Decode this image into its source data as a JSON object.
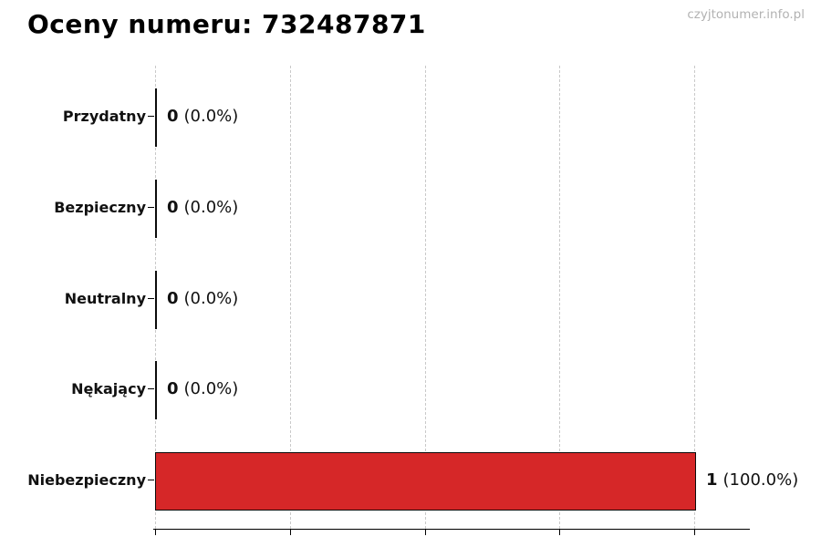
{
  "header": {
    "title": "Oceny numeru: 732487871",
    "watermark": "czyjtonumer.info.pl"
  },
  "chart_data": {
    "type": "bar",
    "orientation": "horizontal",
    "title": "Oceny numeru: 732487871",
    "categories": [
      "Przydatny",
      "Bezpieczny",
      "Neutralny",
      "Nękający",
      "Niebezpieczny"
    ],
    "values": [
      0,
      0,
      0,
      0,
      1
    ],
    "percentages": [
      0.0,
      0.0,
      0.0,
      0.0,
      100.0
    ],
    "value_labels": [
      {
        "count": "0",
        "pct": "(0.0%)"
      },
      {
        "count": "0",
        "pct": "(0.0%)"
      },
      {
        "count": "0",
        "pct": "(0.0%)"
      },
      {
        "count": "0",
        "pct": "(0.0%)"
      },
      {
        "count": "1",
        "pct": "(100.0%)"
      }
    ],
    "bar_colors": [
      "#d62728",
      "#d62728",
      "#d62728",
      "#d62728",
      "#d62728"
    ],
    "bar_edge_color": "#0b0b0b",
    "xlim": [
      0,
      1
    ],
    "xticks": [
      0,
      0.25,
      0.5,
      0.75,
      1.0
    ],
    "xtick_labels": [],
    "grid": "vertical-dashed",
    "legend": "none"
  }
}
